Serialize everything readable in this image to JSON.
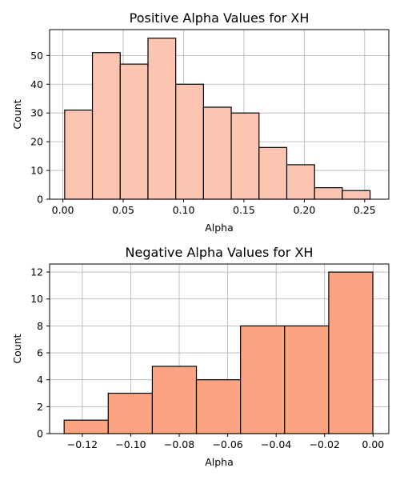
{
  "chart_data": [
    {
      "type": "bar",
      "title": "Positive Alpha Values for XH",
      "xlabel": "Alpha",
      "ylabel": "Count",
      "xlim": [
        -0.011,
        0.27
      ],
      "ylim": [
        0,
        59
      ],
      "xticks": [
        0.0,
        0.05,
        0.1,
        0.15,
        0.2,
        0.25
      ],
      "xtick_labels": [
        "0.00",
        "0.05",
        "0.10",
        "0.15",
        "0.20",
        "0.25"
      ],
      "yticks": [
        0,
        10,
        20,
        30,
        40,
        50
      ],
      "ytick_labels": [
        "0",
        "10",
        "20",
        "30",
        "40",
        "50"
      ],
      "bin_edges": [
        0.0015,
        0.0245,
        0.0475,
        0.0705,
        0.0935,
        0.1165,
        0.1395,
        0.1625,
        0.1855,
        0.2085,
        0.2315,
        0.2545
      ],
      "values": [
        31,
        51,
        47,
        56,
        40,
        32,
        30,
        18,
        12,
        4,
        3
      ],
      "color": "#fcc5b1",
      "edgecolor": "#000000",
      "grid": true
    },
    {
      "type": "bar",
      "title": "Negative Alpha Values for XH",
      "xlabel": "Alpha",
      "ylabel": "Count",
      "xlim": [
        -0.1335,
        0.0065
      ],
      "ylim": [
        0,
        12.6
      ],
      "xticks": [
        -0.12,
        -0.1,
        -0.08,
        -0.06,
        -0.04,
        -0.02,
        0.0
      ],
      "xtick_labels": [
        "−0.12",
        "−0.10",
        "−0.08",
        "−0.06",
        "−0.04",
        "−0.02",
        "0.00"
      ],
      "yticks": [
        0,
        2,
        4,
        6,
        8,
        10,
        12
      ],
      "ytick_labels": [
        "0",
        "2",
        "4",
        "6",
        "8",
        "10",
        "12"
      ],
      "bin_edges": [
        -0.1275,
        -0.1093,
        -0.0911,
        -0.0729,
        -0.0547,
        -0.0365,
        -0.0183,
        -0.0001
      ],
      "values": [
        1,
        3,
        5,
        4,
        8,
        8,
        12
      ],
      "color": "#fca482",
      "edgecolor": "#000000",
      "grid": true
    }
  ]
}
